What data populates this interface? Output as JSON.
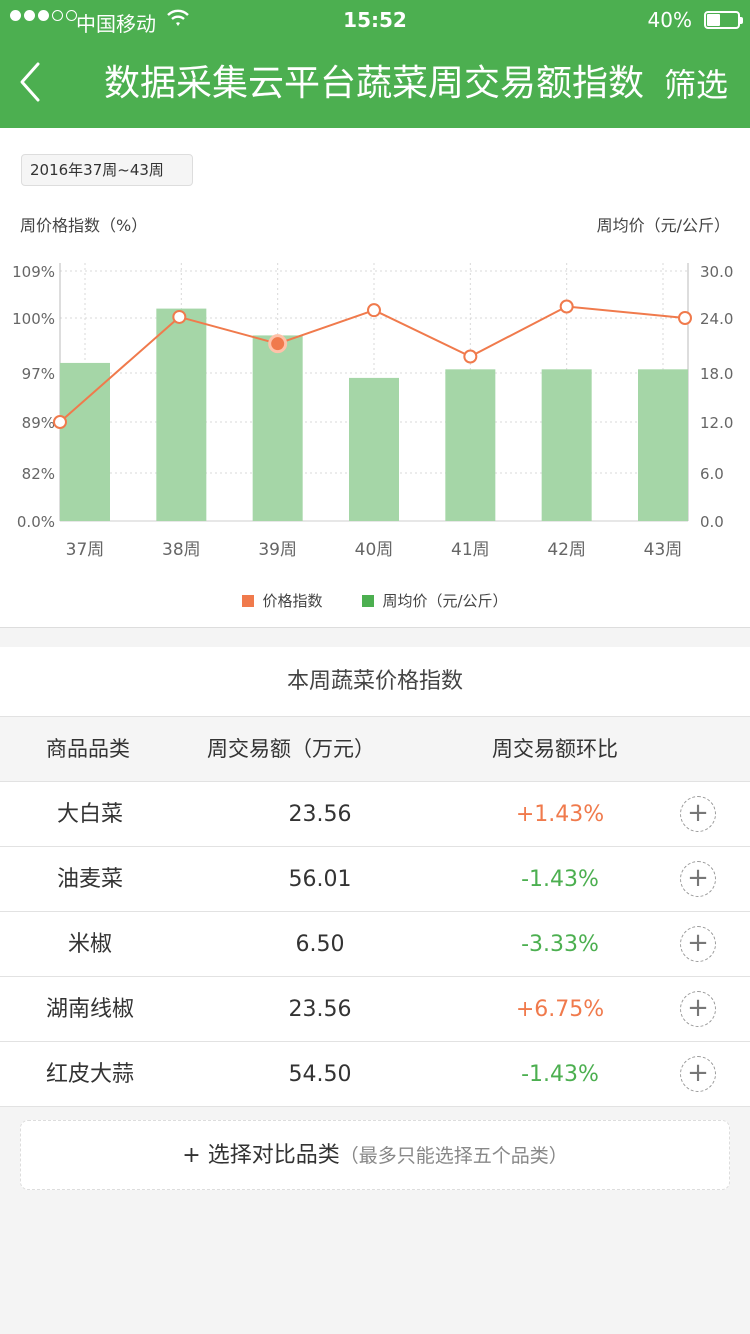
{
  "status_bar": {
    "carrier": "中国移动",
    "time": "15:52",
    "battery": "40%"
  },
  "nav": {
    "title": "数据采集云平台蔬菜周交易额指数",
    "filter_label": "筛选"
  },
  "chart_card": {
    "week_range": "2016年37周~43周",
    "left_axis_title": "周价格指数（%）",
    "right_axis_title": "周均价（元/公斤）"
  },
  "chart_data": {
    "type": "bar",
    "categories": [
      "37周",
      "38周",
      "39周",
      "40周",
      "41周",
      "42周",
      "43周"
    ],
    "left_axis_ticks": [
      "109%",
      "100%",
      "97%",
      "89%",
      "82%",
      "0.0%"
    ],
    "right_axis_ticks": [
      "30.0",
      "24.0",
      "18.0",
      "12.0",
      "6.0",
      "0.0"
    ],
    "series": [
      {
        "name": "周均价（元/公斤）",
        "type": "bar",
        "axis": "right",
        "color": "#a5d6a7",
        "values": [
          19.1,
          25.2,
          22.1,
          17.4,
          18.4,
          18.4,
          18.4
        ]
      },
      {
        "name": "价格指数",
        "type": "line",
        "axis": "left",
        "color": "#f07a4c",
        "values": [
          89,
          100.2,
          98.6,
          101.5,
          97.9,
          102.2,
          100
        ]
      }
    ],
    "highlight_index": 2,
    "grid": true,
    "legend_position": "bottom-center"
  },
  "legend": {
    "price_index": "价格指数",
    "avg_price": "周均价（元/公斤）"
  },
  "table": {
    "title": "本周蔬菜价格指数",
    "headers": {
      "category": "商品品类",
      "amount": "周交易额（万元）",
      "ratio": "周交易额环比"
    },
    "rows": [
      {
        "name": "大白菜",
        "amount": "23.56",
        "ratio": "+1.43%",
        "trend": "up"
      },
      {
        "name": "油麦菜",
        "amount": "56.01",
        "ratio": "-1.43%",
        "trend": "down"
      },
      {
        "name": "米椒",
        "amount": "6.50",
        "ratio": "-3.33%",
        "trend": "down"
      },
      {
        "name": "湖南线椒",
        "amount": "23.56",
        "ratio": "+6.75%",
        "trend": "up"
      },
      {
        "name": "红皮大蒜",
        "amount": "54.50",
        "ratio": "-1.43%",
        "trend": "down"
      }
    ]
  },
  "compare": {
    "plus": "+",
    "label": "选择对比品类",
    "note": "（最多只能选择五个品类）"
  },
  "colors": {
    "brand": "#4caf50",
    "up": "#f07a4c",
    "down": "#4caf50",
    "bar": "#a5d6a7",
    "line": "#f07a4c"
  }
}
